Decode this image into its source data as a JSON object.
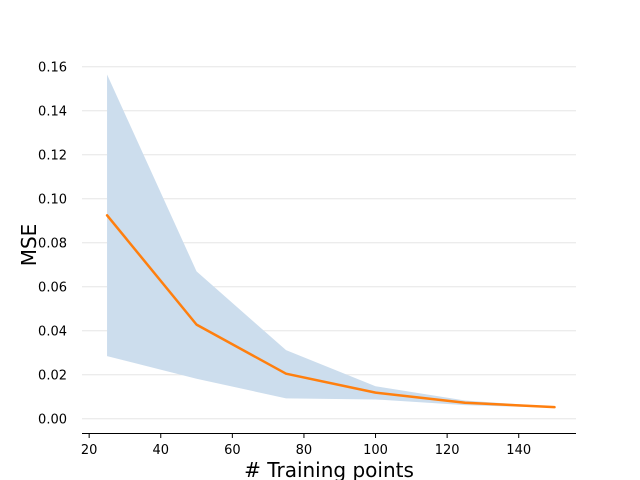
{
  "chart_data": {
    "type": "line",
    "title": "",
    "xlabel": "# Training points",
    "ylabel": "MSE",
    "xlim": [
      18,
      156
    ],
    "ylim": [
      -0.006,
      0.164
    ],
    "xticks": [
      20,
      40,
      60,
      80,
      100,
      120,
      140
    ],
    "yticks": [
      0.0,
      0.02,
      0.04,
      0.06,
      0.08,
      0.1,
      0.12,
      0.14,
      0.16
    ],
    "xtick_labels": [
      "20",
      "40",
      "60",
      "80",
      "100",
      "120",
      "140"
    ],
    "ytick_labels": [
      "0.00",
      "0.02",
      "0.04",
      "0.06",
      "0.08",
      "0.10",
      "0.12",
      "0.14",
      "0.16"
    ],
    "grid": "horizontal",
    "legend": "none",
    "x": [
      25,
      50,
      75,
      100,
      125,
      150
    ],
    "series": [
      {
        "values": [
          0.0925,
          0.0428,
          0.0205,
          0.0119,
          0.0073,
          0.0053
        ],
        "lower": [
          0.0285,
          0.0182,
          0.0093,
          0.0088,
          0.0062,
          0.005
        ],
        "upper": [
          0.1565,
          0.067,
          0.0312,
          0.0148,
          0.0083,
          0.0055
        ],
        "color": "#ff7f0e",
        "band_color": "#ccdded"
      }
    ]
  }
}
